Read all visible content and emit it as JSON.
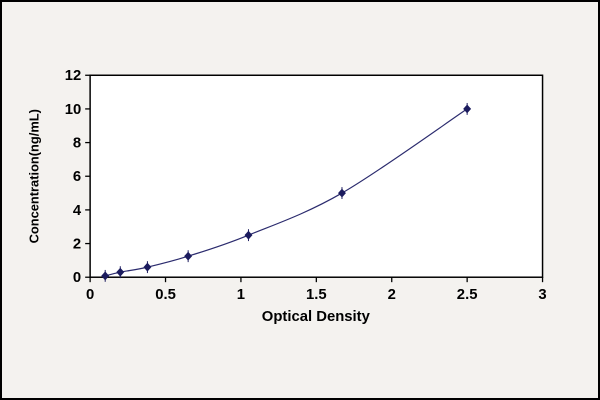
{
  "chart_data": {
    "type": "line",
    "title": "",
    "xlabel": "Optical Density",
    "ylabel": "Concentration(ng/mL)",
    "x": [
      0.1,
      0.2,
      0.38,
      0.65,
      1.05,
      1.67,
      2.5
    ],
    "y": [
      0.08,
      0.3,
      0.6,
      1.25,
      2.5,
      5.0,
      10.0
    ],
    "xlim": [
      0,
      3
    ],
    "ylim": [
      0,
      12
    ],
    "xticks": [
      0,
      0.5,
      1,
      1.5,
      2,
      2.5,
      3
    ],
    "xtick_labels": [
      "0",
      "0.5",
      "1",
      "1.5",
      "2",
      "2.5",
      "3"
    ],
    "yticks": [
      0,
      2,
      4,
      6,
      8,
      10,
      12
    ],
    "ytick_labels": [
      "0",
      "2",
      "4",
      "6",
      "8",
      "10",
      "12"
    ],
    "grid": false,
    "legend": "none",
    "line_color": "#2b2b6e",
    "marker_color": "#1b1b5e",
    "marker": "diamond",
    "plot_bg": "#ffffff",
    "figure_bg": "#f4f2ef",
    "frame_color": "#000000"
  }
}
